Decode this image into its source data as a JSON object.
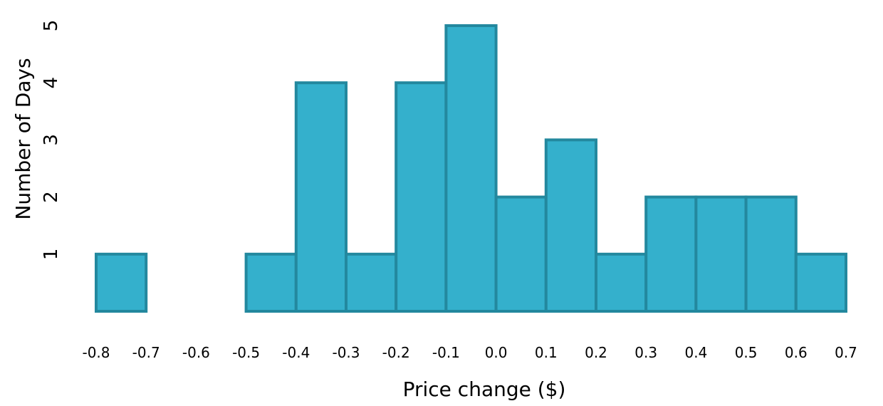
{
  "chart_data": {
    "type": "bar",
    "xlabel": "Price change ($)",
    "ylabel": "Number of Days",
    "xlim": [
      -0.8,
      0.7
    ],
    "ylim": [
      0,
      5
    ],
    "x_ticks": [
      "-0.8",
      "-0.7",
      "-0.6",
      "-0.5",
      "-0.4",
      "-0.3",
      "-0.2",
      "-0.1",
      "0.0",
      "0.1",
      "0.2",
      "0.3",
      "0.4",
      "0.5",
      "0.6",
      "0.7"
    ],
    "y_ticks": [
      "1",
      "2",
      "3",
      "4",
      "5"
    ],
    "bins": [
      {
        "from": -0.8,
        "to": -0.7,
        "count": 1
      },
      {
        "from": -0.5,
        "to": -0.4,
        "count": 1
      },
      {
        "from": -0.4,
        "to": -0.3,
        "count": 4
      },
      {
        "from": -0.3,
        "to": -0.2,
        "count": 1
      },
      {
        "from": -0.2,
        "to": -0.1,
        "count": 4
      },
      {
        "from": -0.1,
        "to": 0.0,
        "count": 5
      },
      {
        "from": 0.0,
        "to": 0.1,
        "count": 2
      },
      {
        "from": 0.1,
        "to": 0.2,
        "count": 3
      },
      {
        "from": 0.2,
        "to": 0.3,
        "count": 1
      },
      {
        "from": 0.3,
        "to": 0.4,
        "count": 2
      },
      {
        "from": 0.4,
        "to": 0.5,
        "count": 2
      },
      {
        "from": 0.5,
        "to": 0.6,
        "count": 2
      },
      {
        "from": 0.6,
        "to": 0.7,
        "count": 1
      }
    ],
    "colors": {
      "fill": "#34b0cc",
      "stroke": "#23889e"
    },
    "grid": false,
    "legend": "none"
  }
}
